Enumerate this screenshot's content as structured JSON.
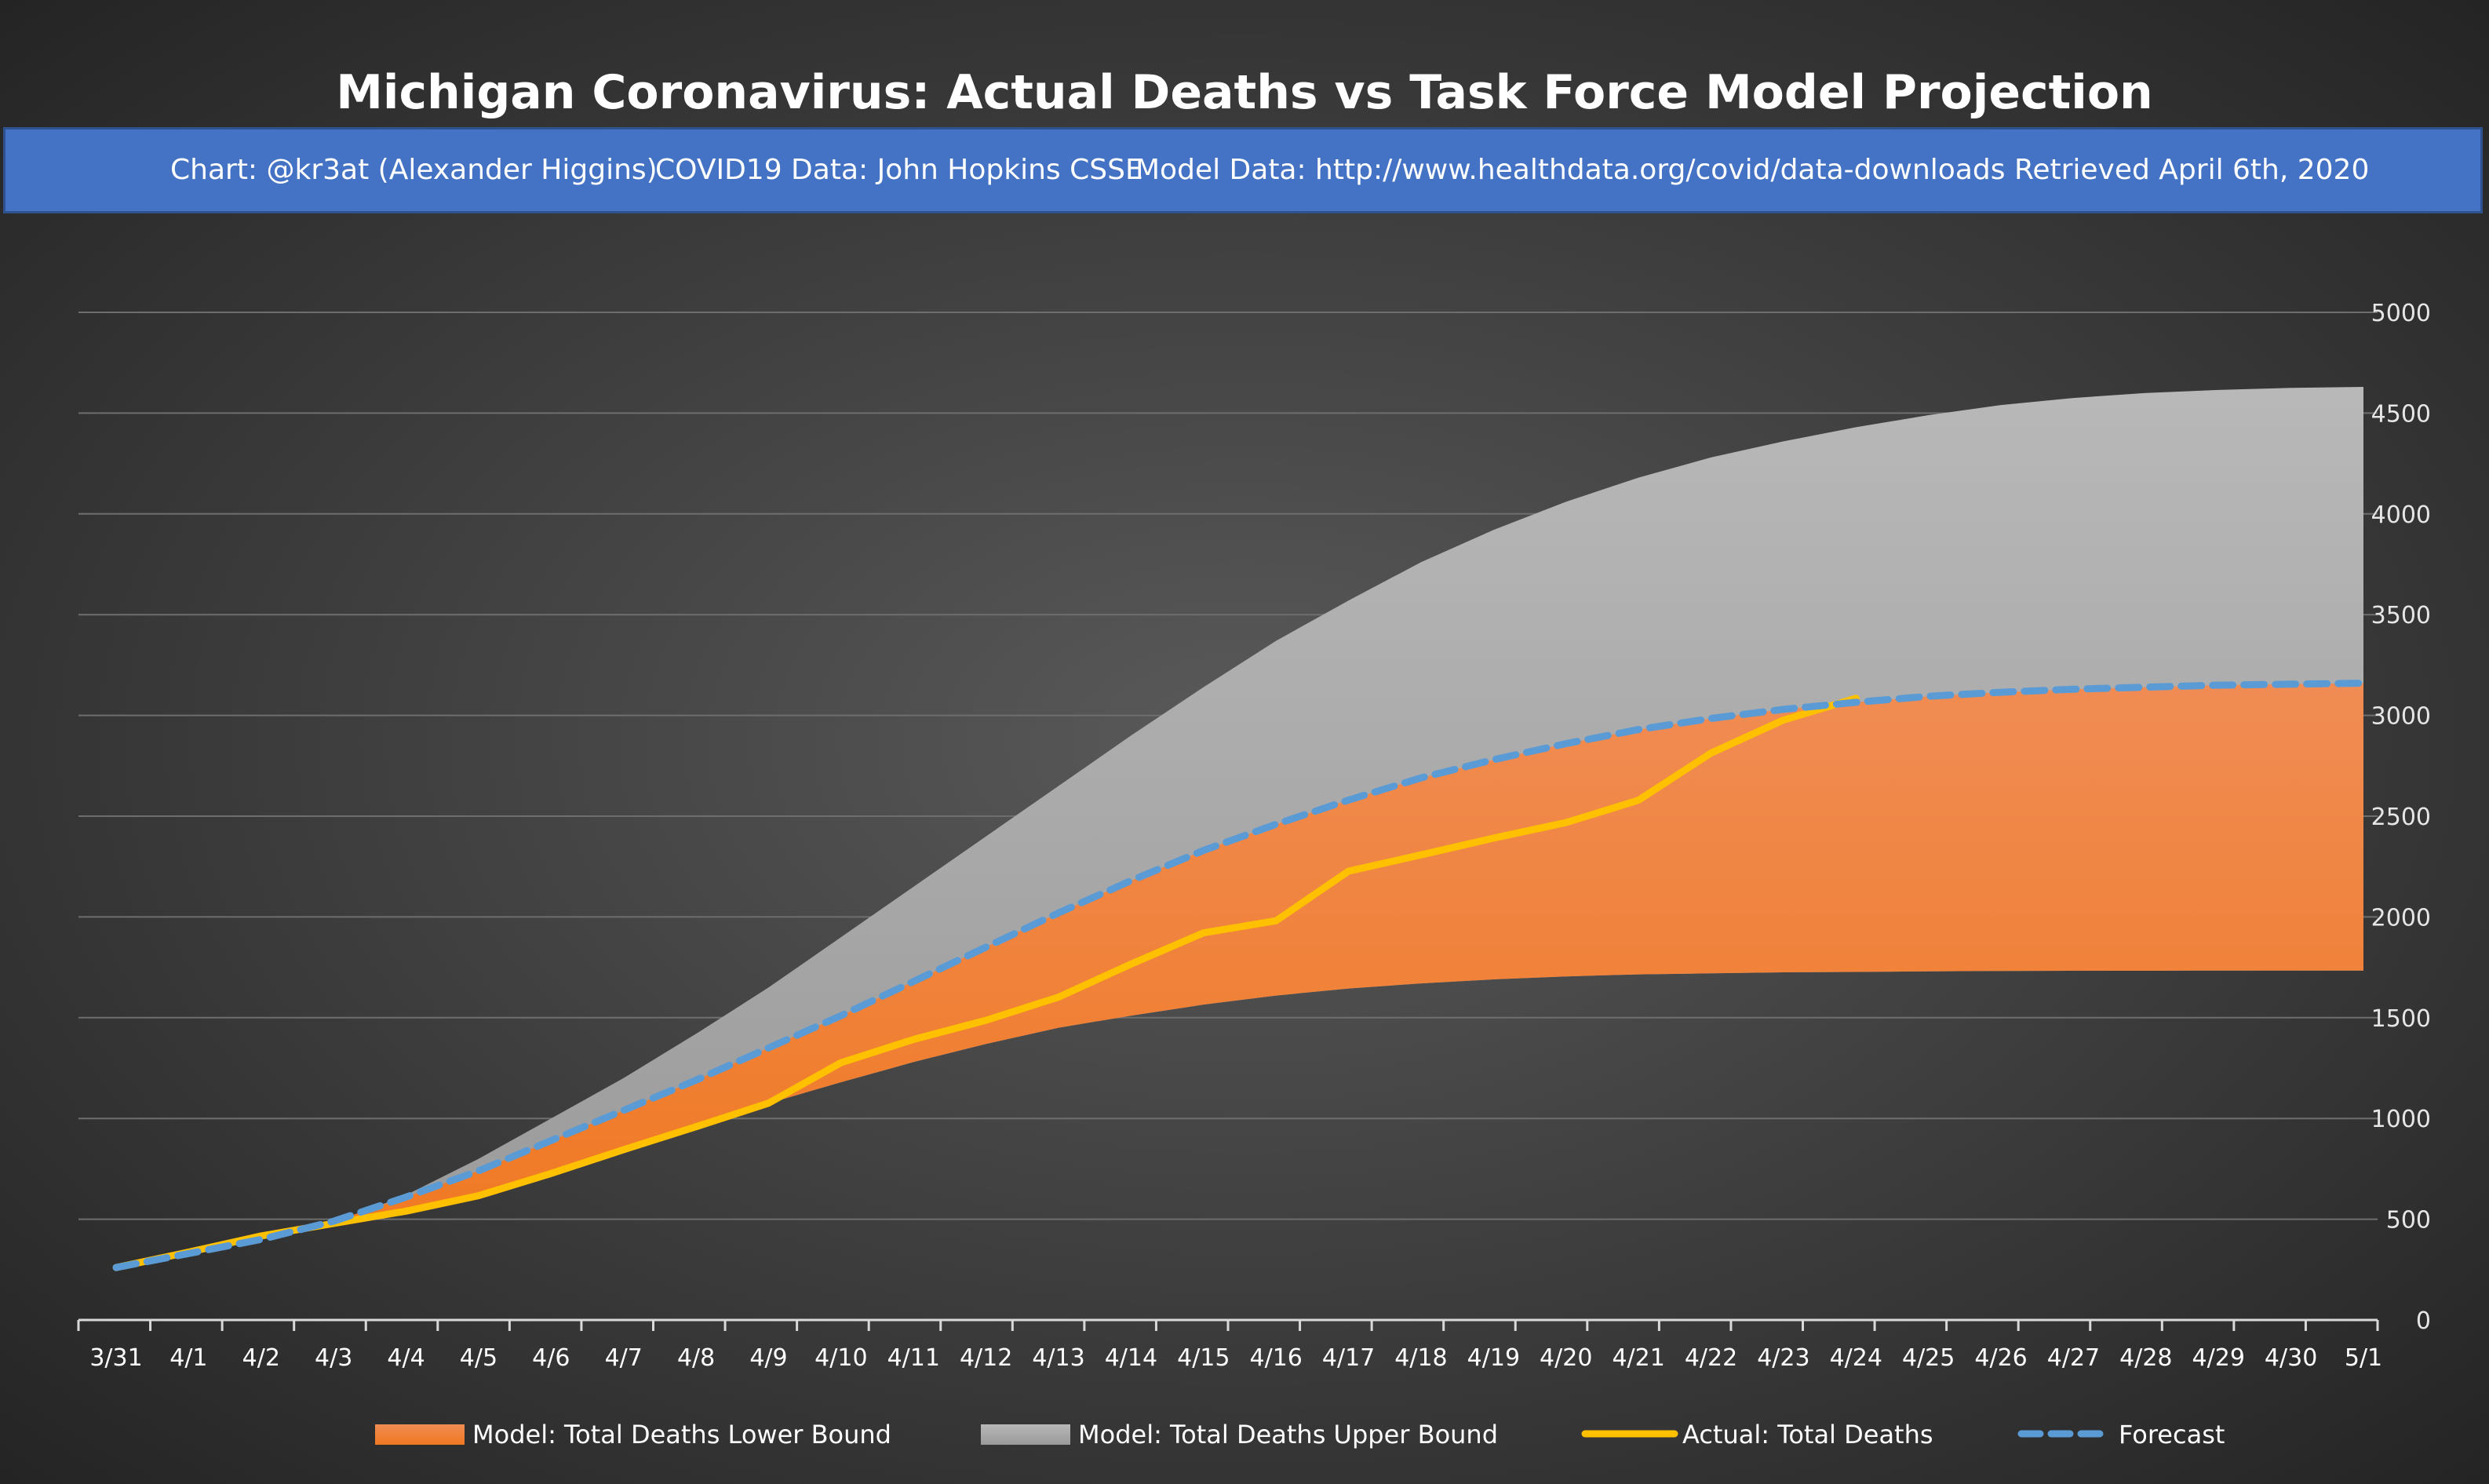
{
  "chart_data": {
    "type": "area",
    "title": "Michigan Coronavirus: Actual Deaths vs Task Force Model Projection",
    "credits": [
      "Chart: @kr3at (Alexander Higgins)",
      "COVID19 Data: John Hopkins CSSE",
      "Model Data: http://www.healthdata.org/covid/data-downloads Retrieved April 6th, 2020"
    ],
    "xlabel": "",
    "ylabel": "",
    "ylim": [
      0,
      5000
    ],
    "yticks": [
      0,
      500,
      1000,
      1500,
      2000,
      2500,
      3000,
      3500,
      4000,
      4500,
      5000
    ],
    "grid": "horizontal",
    "y_axis_side": "right",
    "legend_position": "bottom",
    "categories": [
      "3/31",
      "4/1",
      "4/2",
      "4/3",
      "4/4",
      "4/5",
      "4/6",
      "4/7",
      "4/8",
      "4/9",
      "4/10",
      "4/11",
      "4/12",
      "4/13",
      "4/14",
      "4/15",
      "4/16",
      "4/17",
      "4/18",
      "4/19",
      "4/20",
      "4/21",
      "4/22",
      "4/23",
      "4/24",
      "4/25",
      "4/26",
      "4/27",
      "4/28",
      "4/29",
      "4/30",
      "5/1"
    ],
    "series": [
      {
        "name": "Model: Total Deaths Lower Bound",
        "kind": "area",
        "color": "#f07c26",
        "color_light": "#f08c54",
        "values": [
          260,
          330,
          400,
          465,
          530,
          615,
          720,
          830,
          950,
          1075,
          1180,
          1280,
          1370,
          1450,
          1510,
          1565,
          1610,
          1645,
          1670,
          1690,
          1705,
          1715,
          1720,
          1725,
          1727,
          1730,
          1732,
          1733,
          1733,
          1734,
          1734,
          1734
        ]
      },
      {
        "name": "Model: Total Deaths Upper Bound",
        "kind": "area",
        "color": "#a6a6a6",
        "values": [
          260,
          330,
          400,
          480,
          620,
          800,
          1000,
          1200,
          1420,
          1650,
          1900,
          2150,
          2400,
          2650,
          2900,
          3140,
          3370,
          3570,
          3760,
          3920,
          4060,
          4180,
          4280,
          4360,
          4430,
          4490,
          4540,
          4575,
          4600,
          4615,
          4625,
          4630
        ]
      },
      {
        "name": "Actual: Total Deaths",
        "kind": "line",
        "color": "#ffc000",
        "values": [
          260,
          337,
          417,
          479,
          540,
          617,
          727,
          845,
          959,
          1076,
          1277,
          1392,
          1487,
          1602,
          1766,
          1921,
          1981,
          2227,
          2308,
          2391,
          2468,
          2579,
          2813,
          2977,
          3085,
          null,
          null,
          null,
          null,
          null,
          null,
          null
        ]
      },
      {
        "name": "Forecast",
        "kind": "dashed-line",
        "color": "#5b9bd5",
        "values": [
          260,
          330,
          400,
          490,
          610,
          740,
          890,
          1040,
          1190,
          1350,
          1510,
          1680,
          1850,
          2020,
          2180,
          2330,
          2460,
          2580,
          2690,
          2780,
          2860,
          2930,
          2985,
          3030,
          3065,
          3095,
          3115,
          3130,
          3140,
          3150,
          3155,
          3160
        ]
      }
    ]
  }
}
